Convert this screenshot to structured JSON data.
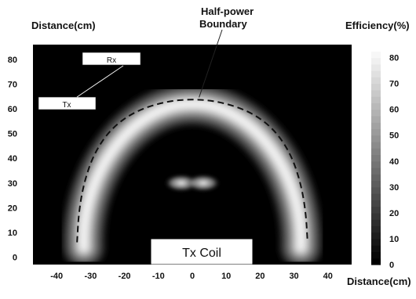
{
  "chart_data": {
    "type": "heatmap",
    "ylabel": "Distance(cm)",
    "xlabel": "Distance(cm)",
    "colorbar_label": "Efficiency(%)",
    "annotations": {
      "boundary": [
        "Half-power",
        "Boundary"
      ],
      "rx": "Rx",
      "tx": "Tx",
      "coil": "Tx Coil"
    },
    "x_ticks": [
      -40,
      -30,
      -20,
      -10,
      0,
      10,
      20,
      30,
      40
    ],
    "x_tick_labels": [
      "-40",
      "-30",
      "-20",
      "-10",
      "0",
      "10",
      "20",
      "30",
      "40"
    ],
    "y_ticks": [
      0,
      10,
      20,
      30,
      40,
      50,
      60,
      70,
      80
    ],
    "y_tick_labels": [
      "0",
      "10",
      "20",
      "30",
      "40",
      "50",
      "60",
      "70",
      "80"
    ],
    "colorbar_ticks": [
      0,
      10,
      20,
      30,
      40,
      50,
      60,
      70,
      80
    ],
    "colorbar_tick_labels": [
      "0",
      "10",
      "20",
      "30",
      "40",
      "50",
      "60",
      "70",
      "80"
    ],
    "xlim": [
      -47,
      47
    ],
    "ylim": [
      -3,
      86
    ],
    "colorbar_range": [
      0,
      85
    ],
    "colorscale": [
      "#000000",
      "#ffffff"
    ],
    "efficiency_ridge": {
      "center_height": 62,
      "side_half_width": 32,
      "peak_efficiency": 82,
      "ring_thickness": 7
    },
    "half_power_boundary": [
      [
        -34,
        6
      ],
      [
        -33.5,
        18
      ],
      [
        -32,
        30
      ],
      [
        -29,
        42
      ],
      [
        -24,
        52
      ],
      [
        -17,
        59
      ],
      [
        -8,
        63
      ],
      [
        0,
        64
      ],
      [
        8,
        63
      ],
      [
        17,
        59
      ],
      [
        24,
        52
      ],
      [
        29,
        42
      ],
      [
        32,
        30
      ],
      [
        33.5,
        18
      ],
      [
        34,
        6
      ]
    ],
    "center_lobe": {
      "x": 0,
      "y": 30,
      "peak_efficiency": 50
    }
  }
}
